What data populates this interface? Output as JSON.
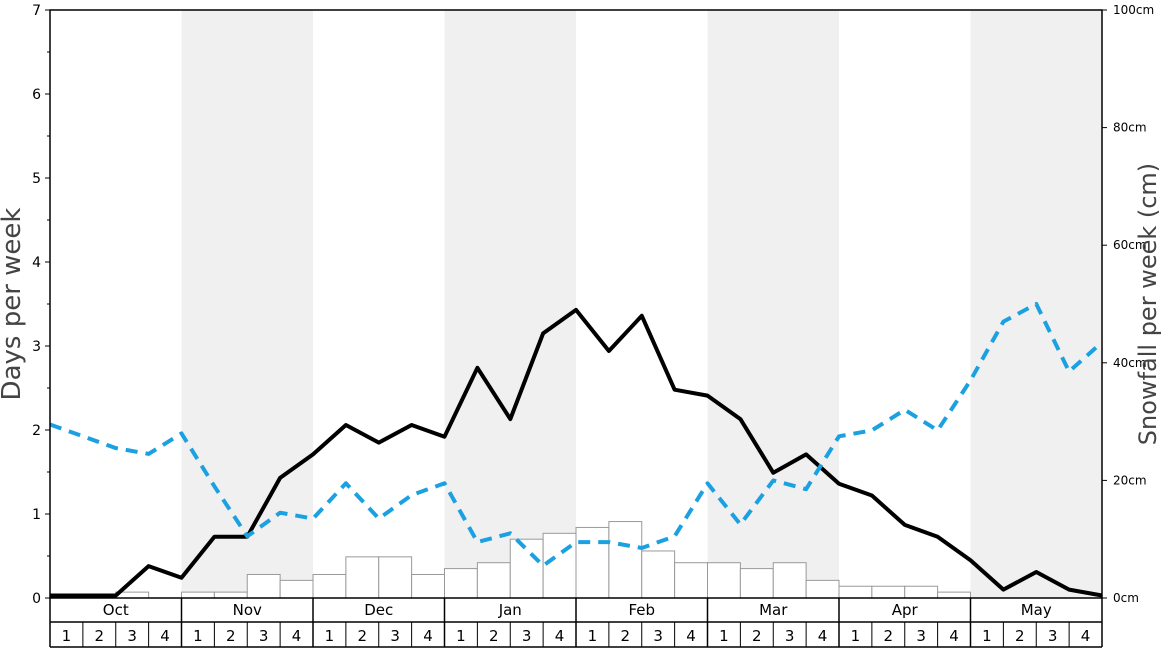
{
  "chart_data": {
    "type": "line+bar",
    "ylabel_left": "Days per week",
    "ylabel_right": "Snowfall per week (cm)",
    "ylim_left": [
      0,
      7
    ],
    "yticks_left": [
      "0",
      "1",
      "2",
      "3",
      "4",
      "5",
      "6",
      "7"
    ],
    "ylim_right": [
      0,
      100
    ],
    "yticks_right": [
      "0cm",
      "20cm",
      "40cm",
      "60cm",
      "80cm",
      "100cm"
    ],
    "months": [
      "Oct",
      "Nov",
      "Dec",
      "Jan",
      "Feb",
      "Mar",
      "Apr",
      "May"
    ],
    "week_labels": [
      "1",
      "2",
      "3",
      "4"
    ],
    "shaded_months": [
      "Nov",
      "Jan",
      "Mar",
      "May"
    ],
    "grid": false,
    "colors": {
      "days_line": "#000000",
      "dashed_line": "#1ba1e2",
      "bar_fill": "#ffffff",
      "bar_stroke": "#999999",
      "shade": "#f0f0f0"
    },
    "series": [
      {
        "kind": "bar",
        "axis": "right",
        "unit": "cm",
        "values": [
          0,
          0,
          1,
          0,
          1,
          1,
          4,
          3,
          4,
          7,
          7,
          4,
          5,
          6,
          10,
          11,
          12,
          13,
          8,
          6,
          6,
          5,
          6,
          3,
          2,
          2,
          2,
          1,
          0,
          0,
          0,
          0
        ]
      },
      {
        "kind": "line",
        "axis": "left",
        "style": "solid",
        "values": [
          0.03,
          0.03,
          0.03,
          0.38,
          0.24,
          0.73,
          0.73,
          1.43,
          1.71,
          2.06,
          1.85,
          2.06,
          1.92,
          2.74,
          2.13,
          3.15,
          3.43,
          2.94,
          3.36,
          2.48,
          2.41,
          2.13,
          1.49,
          1.71,
          1.36,
          1.22,
          0.87,
          0.73,
          0.45,
          0.1,
          0.31,
          0.1,
          0.03
        ]
      },
      {
        "kind": "line",
        "axis": "right",
        "style": "dashed",
        "values": [
          29.5,
          27.5,
          25.5,
          24.5,
          28.0,
          19.0,
          10.5,
          14.5,
          13.5,
          19.5,
          13.5,
          17.5,
          19.5,
          9.5,
          11.0,
          5.5,
          9.5,
          9.5,
          8.5,
          10.5,
          19.5,
          12.5,
          20.0,
          18.5,
          27.5,
          28.5,
          32.0,
          28.5,
          37.0,
          47.0,
          50.0,
          38.5,
          43.5
        ]
      }
    ]
  }
}
